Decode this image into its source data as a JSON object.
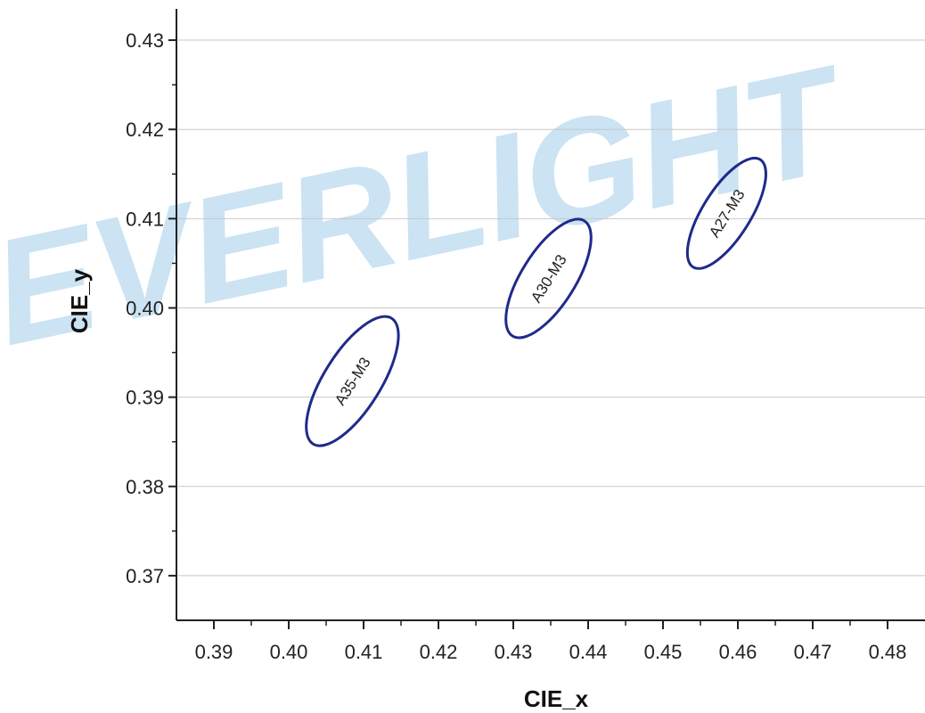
{
  "watermark": {
    "text": "EVERLIGHT",
    "color": "#b9d9ef"
  },
  "chart_data": {
    "type": "scatter",
    "xlabel": "CIE_x",
    "ylabel": "CIE_y",
    "xlim": [
      0.385,
      0.485
    ],
    "ylim": [
      0.365,
      0.4335
    ],
    "xticks": [
      "0.39",
      "0.40",
      "0.41",
      "0.42",
      "0.43",
      "0.44",
      "0.45",
      "0.46",
      "0.47",
      "0.48"
    ],
    "xtick_values": [
      0.39,
      0.4,
      0.41,
      0.42,
      0.43,
      0.44,
      0.45,
      0.46,
      0.47,
      0.48
    ],
    "yticks": [
      "0.37",
      "0.38",
      "0.39",
      "0.40",
      "0.41",
      "0.42",
      "0.43"
    ],
    "ytick_values": [
      0.37,
      0.38,
      0.39,
      0.4,
      0.41,
      0.42,
      0.43
    ],
    "grid": "horizontal",
    "ellipse_color": "#1f2a8a",
    "ellipses": [
      {
        "name": "A35-M3",
        "cx": 0.4085,
        "cy": 0.3918,
        "rx": 0.0038,
        "ry": 0.0083
      },
      {
        "name": "A30-M3",
        "cx": 0.4347,
        "cy": 0.4033,
        "rx": 0.0036,
        "ry": 0.0076
      },
      {
        "name": "A27-M3",
        "cx": 0.4585,
        "cy": 0.4106,
        "rx": 0.0032,
        "ry": 0.0071
      }
    ]
  }
}
